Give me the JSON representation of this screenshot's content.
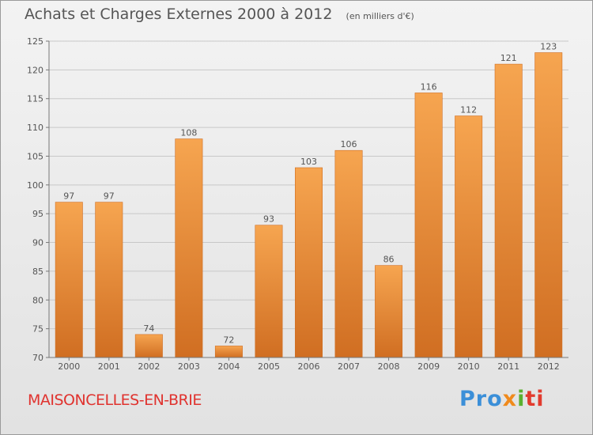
{
  "header": {
    "title": "Achats et Charges Externes 2000 à 2012",
    "subtitle": "(en milliers d'€)"
  },
  "footer": {
    "commune": "MAISONCELLES-EN-BRIE",
    "brand": [
      "Pro",
      "x",
      "i",
      "ti"
    ]
  },
  "colors": {
    "bar": "#e8893a",
    "bar_light": "#f6a550",
    "bar_dark": "#d06e22",
    "grid": "#c8c8c8",
    "text": "#555555",
    "commune": "#e0332f"
  },
  "chart_data": {
    "type": "bar",
    "categories": [
      "2000",
      "2001",
      "2002",
      "2003",
      "2004",
      "2005",
      "2006",
      "2007",
      "2008",
      "2009",
      "2010",
      "2011",
      "2012"
    ],
    "values": [
      97,
      97,
      74,
      108,
      72,
      93,
      103,
      106,
      86,
      116,
      112,
      121,
      123
    ],
    "ylim": [
      70,
      125
    ],
    "yticks": [
      70,
      75,
      80,
      85,
      90,
      95,
      100,
      105,
      110,
      115,
      120,
      125
    ],
    "grid": true,
    "data_labels": true
  }
}
